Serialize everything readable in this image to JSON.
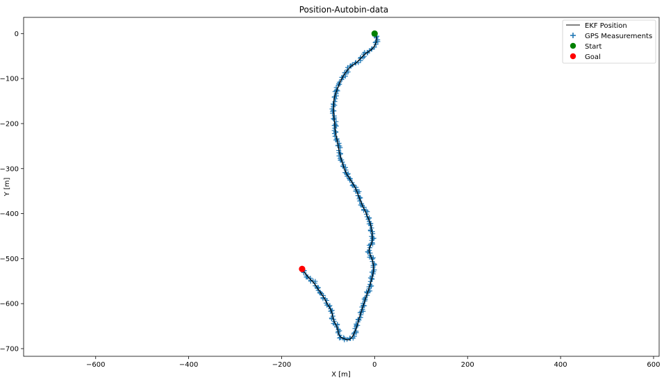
{
  "chart_data": {
    "type": "line",
    "title": "Position-Autobin-data",
    "xlabel": "X [m]",
    "ylabel": "Y [m]",
    "xlim": [
      -755,
      612
    ],
    "ylim": [
      -717,
      36
    ],
    "xticks": [
      -600,
      -400,
      -200,
      0,
      200,
      400,
      600
    ],
    "yticks": [
      0,
      -100,
      -200,
      -300,
      -400,
      -500,
      -600,
      -700
    ],
    "xtick_labels": [
      "−600",
      "−400",
      "−200",
      "0",
      "200",
      "400",
      "600"
    ],
    "ytick_labels": [
      "0",
      "−100",
      "−200",
      "−300",
      "−400",
      "−500",
      "−600",
      "−700"
    ],
    "grid": false,
    "legend_position": "top-right",
    "colors": {
      "ekf": "#000000",
      "gps": "#1f77b4",
      "start": "#008000",
      "goal": "#ff0000"
    },
    "series": [
      {
        "name": "EKF Position",
        "kind": "line",
        "x": [
          0,
          4,
          3,
          -2,
          -10,
          -20,
          -30,
          -40,
          -52,
          -62,
          -70,
          -76,
          -82,
          -87,
          -88,
          -88,
          -86,
          -84,
          -80,
          -76,
          -70,
          -62,
          -52,
          -42,
          -34,
          -26,
          -18,
          -10,
          -6,
          -5,
          -8,
          -12,
          -10,
          -6,
          -3,
          -3,
          -8,
          -15,
          -23,
          -31,
          -38,
          -46,
          -55,
          -65,
          -72,
          -77,
          -80,
          -84,
          -87,
          -90,
          -92,
          -96,
          -102,
          -110,
          -120,
          -130,
          -140,
          -150,
          -156
        ],
        "y": [
          -2,
          -8,
          -20,
          -30,
          -38,
          -45,
          -55,
          -65,
          -74,
          -86,
          -99,
          -112,
          -128,
          -145,
          -160,
          -180,
          -200,
          -220,
          -240,
          -262,
          -285,
          -308,
          -325,
          -342,
          -362,
          -382,
          -400,
          -420,
          -440,
          -458,
          -470,
          -480,
          -490,
          -500,
          -512,
          -530,
          -552,
          -575,
          -600,
          -625,
          -650,
          -670,
          -680,
          -678,
          -675,
          -668,
          -655,
          -645,
          -640,
          -630,
          -620,
          -610,
          -600,
          -585,
          -570,
          -555,
          -544,
          -532,
          -523
        ]
      },
      {
        "name": "GPS Measurements",
        "kind": "scatter",
        "marker": "plus"
      },
      {
        "name": "Start",
        "kind": "point",
        "x": [
          0
        ],
        "y": [
          0
        ]
      },
      {
        "name": "Goal",
        "kind": "point",
        "x": [
          -156
        ],
        "y": [
          -523
        ]
      }
    ]
  }
}
